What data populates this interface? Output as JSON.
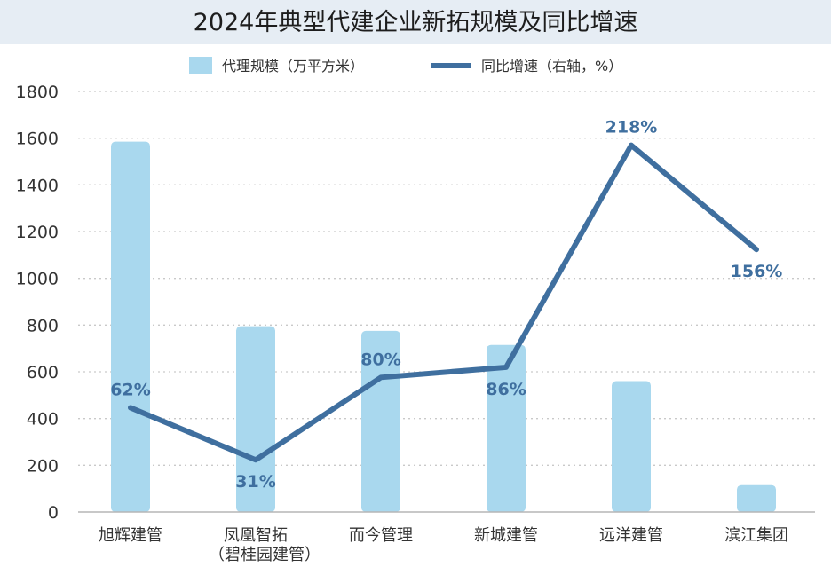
{
  "chart_data": {
    "type": "bar",
    "title": "2024年典型代建企业新拓规模及同比增速",
    "categories": [
      "旭辉建管",
      "凤凰智拓",
      "而今管理",
      "新城建管",
      "远洋建管",
      "滨江集团"
    ],
    "category_sublabels": [
      "",
      "（碧桂园建管）",
      "",
      "",
      "",
      ""
    ],
    "series": [
      {
        "name": "代理规模（万平方米）",
        "type": "bar",
        "axis": "left",
        "color": "#a9d8ee",
        "values": [
          1585,
          795,
          775,
          715,
          560,
          115
        ]
      },
      {
        "name": "同比增速（右轴，%）",
        "type": "line",
        "axis": "right",
        "color": "#3f6f9f",
        "values": [
          62,
          31,
          80,
          86,
          218,
          156
        ],
        "labels": [
          "62%",
          "31%",
          "80%",
          "86%",
          "218%",
          "156%"
        ]
      }
    ],
    "ylim": [
      0,
      1800
    ],
    "yticks": [
      "0",
      "200",
      "400",
      "600",
      "800",
      "1000",
      "1200",
      "1400",
      "1600",
      "1800"
    ],
    "y2lim": [
      0,
      250
    ],
    "grid": true,
    "legend_position": "top"
  }
}
